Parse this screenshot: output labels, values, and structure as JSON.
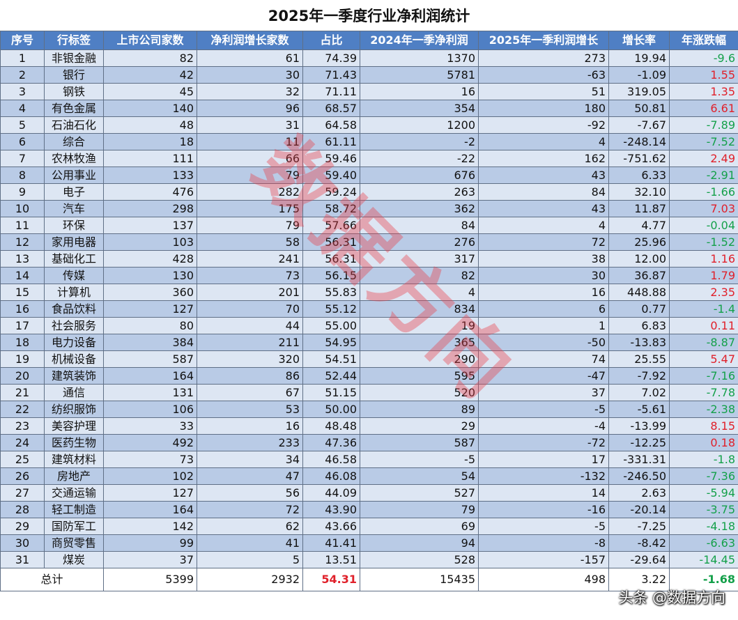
{
  "title": "2025年一季度行业净利润统计",
  "headers": [
    "序号",
    "行标签",
    "上市公司家数",
    "净利润增长家数",
    "占比",
    "2024年一季净利润",
    "2025年一季利润增长",
    "增长率",
    "年涨跌幅"
  ],
  "rows": [
    [
      "1",
      "非银金融",
      "82",
      "61",
      "74.39",
      "1370",
      "273",
      "19.94",
      "-9.6"
    ],
    [
      "2",
      "银行",
      "42",
      "30",
      "71.43",
      "5781",
      "-63",
      "-1.09",
      "1.55"
    ],
    [
      "3",
      "钢铁",
      "45",
      "32",
      "71.11",
      "16",
      "51",
      "319.05",
      "1.35"
    ],
    [
      "4",
      "有色金属",
      "140",
      "96",
      "68.57",
      "354",
      "180",
      "50.81",
      "6.61"
    ],
    [
      "5",
      "石油石化",
      "48",
      "31",
      "64.58",
      "1200",
      "-92",
      "-7.67",
      "-7.89"
    ],
    [
      "6",
      "综合",
      "18",
      "11",
      "61.11",
      "-2",
      "4",
      "-248.14",
      "-7.52"
    ],
    [
      "7",
      "农林牧渔",
      "111",
      "66",
      "59.46",
      "-22",
      "162",
      "-751.62",
      "2.49"
    ],
    [
      "8",
      "公用事业",
      "133",
      "79",
      "59.40",
      "676",
      "43",
      "6.33",
      "-2.91"
    ],
    [
      "9",
      "电子",
      "476",
      "282",
      "59.24",
      "263",
      "84",
      "32.10",
      "-1.66"
    ],
    [
      "10",
      "汽车",
      "298",
      "175",
      "58.72",
      "362",
      "43",
      "11.87",
      "7.03"
    ],
    [
      "11",
      "环保",
      "137",
      "79",
      "57.66",
      "84",
      "4",
      "4.77",
      "-0.04"
    ],
    [
      "12",
      "家用电器",
      "103",
      "58",
      "56.31",
      "276",
      "72",
      "25.96",
      "-1.52"
    ],
    [
      "13",
      "基础化工",
      "428",
      "241",
      "56.31",
      "317",
      "38",
      "12.00",
      "1.16"
    ],
    [
      "14",
      "传媒",
      "130",
      "73",
      "56.15",
      "82",
      "30",
      "36.87",
      "1.79"
    ],
    [
      "15",
      "计算机",
      "360",
      "201",
      "55.83",
      "4",
      "16",
      "448.88",
      "2.35"
    ],
    [
      "16",
      "食品饮料",
      "127",
      "70",
      "55.12",
      "834",
      "6",
      "0.77",
      "-1.4"
    ],
    [
      "17",
      "社会服务",
      "80",
      "44",
      "55.00",
      "19",
      "1",
      "6.83",
      "0.11"
    ],
    [
      "18",
      "电力设备",
      "384",
      "211",
      "54.95",
      "365",
      "-50",
      "-13.83",
      "-8.87"
    ],
    [
      "19",
      "机械设备",
      "587",
      "320",
      "54.51",
      "290",
      "74",
      "25.55",
      "5.47"
    ],
    [
      "20",
      "建筑装饰",
      "164",
      "86",
      "52.44",
      "595",
      "-47",
      "-7.92",
      "-7.16"
    ],
    [
      "21",
      "通信",
      "131",
      "67",
      "51.15",
      "520",
      "37",
      "7.02",
      "-7.78"
    ],
    [
      "22",
      "纺织服饰",
      "106",
      "53",
      "50.00",
      "89",
      "-5",
      "-5.61",
      "-2.38"
    ],
    [
      "23",
      "美容护理",
      "33",
      "16",
      "48.48",
      "29",
      "-4",
      "-13.99",
      "8.15"
    ],
    [
      "24",
      "医药生物",
      "492",
      "233",
      "47.36",
      "587",
      "-72",
      "-12.25",
      "0.18"
    ],
    [
      "25",
      "建筑材料",
      "73",
      "34",
      "46.58",
      "-5",
      "17",
      "-331.31",
      "-1.8"
    ],
    [
      "26",
      "房地产",
      "102",
      "47",
      "46.08",
      "54",
      "-132",
      "-246.50",
      "-7.36"
    ],
    [
      "27",
      "交通运输",
      "127",
      "56",
      "44.09",
      "527",
      "14",
      "2.63",
      "-5.94"
    ],
    [
      "28",
      "轻工制造",
      "164",
      "72",
      "43.90",
      "79",
      "-16",
      "-20.14",
      "-3.75"
    ],
    [
      "29",
      "国防军工",
      "142",
      "62",
      "43.66",
      "69",
      "-5",
      "-7.25",
      "-4.18"
    ],
    [
      "30",
      "商贸零售",
      "99",
      "41",
      "41.41",
      "94",
      "-8",
      "-8.42",
      "-6.63"
    ],
    [
      "31",
      "煤炭",
      "37",
      "5",
      "13.51",
      "528",
      "-157",
      "-29.64",
      "-14.45"
    ]
  ],
  "total": {
    "label": "总计",
    "companies": "5399",
    "growth_count": "2932",
    "ratio": "54.31",
    "profit_2024": "15435",
    "growth_2025": "498",
    "growth_rate": "3.22",
    "yearly_change": "-1.68"
  },
  "watermark": "数据方向",
  "credit": "头条 @数据方向",
  "colors": {
    "header_bg": "#4f7fc4",
    "row_light": "#dde6f3",
    "row_dark": "#b9cbe6",
    "up": "#e0202a",
    "down": "#14a04a"
  }
}
